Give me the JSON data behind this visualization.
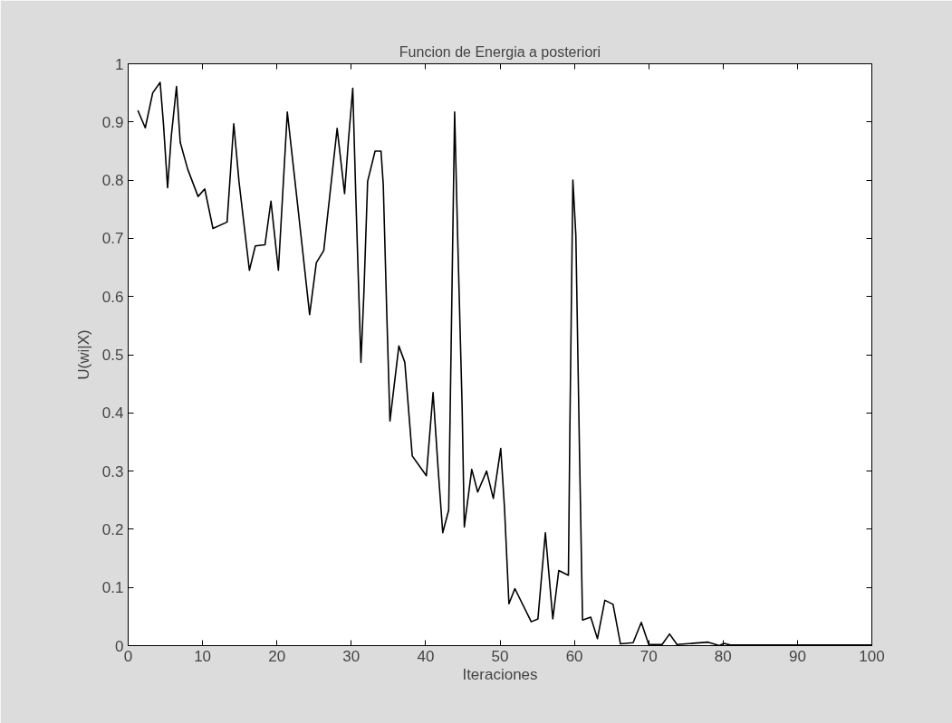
{
  "chart_data": {
    "type": "line",
    "title": "Funcion de Energia a posteriori",
    "xlabel": "Iteraciones",
    "ylabel": "U(wi|X)",
    "xlim": [
      0,
      100
    ],
    "ylim": [
      0,
      1
    ],
    "xticks": [
      0,
      10,
      20,
      30,
      40,
      50,
      60,
      70,
      80,
      90,
      100
    ],
    "yticks": [
      0,
      0.1,
      0.2,
      0.3,
      0.4,
      0.5,
      0.6,
      0.7,
      0.8,
      0.9,
      1
    ],
    "grid": false,
    "marker": "none",
    "line_style": "solid",
    "series": [
      {
        "color": "#000000",
        "x": [
          1.3,
          2.3,
          3.3,
          4.3,
          4.75,
          5.3,
          5.8,
          6.5,
          7,
          8,
          9.4,
          10.3,
          11.4,
          13.3,
          14.2,
          14.9,
          16.3,
          17.1,
          18.4,
          19.2,
          20.2,
          21.4,
          22.8,
          24.4,
          25.3,
          26.3,
          28.1,
          29.1,
          29.6,
          30.2,
          30.6,
          31.3,
          31.7,
          32.2,
          33.2,
          34,
          34.3,
          34.8,
          35.2,
          36.4,
          37.2,
          38.2,
          40.1,
          41,
          41.7,
          42.3,
          43.1,
          43.9,
          44.3,
          44.9,
          45.2,
          46.2,
          47,
          48.2,
          49.1,
          50.1,
          50.6,
          51.2,
          52,
          54.2,
          55.1,
          56.1,
          57.1,
          57.9,
          59.2,
          59.4,
          59.8,
          60.2,
          60.7,
          61.1,
          62.2,
          63.1,
          64.1,
          65.2,
          66.2,
          67.9,
          69,
          70,
          71.8,
          72.8,
          73.8,
          78,
          79.5,
          80.1,
          81,
          100
        ],
        "values": [
          0.92,
          0.89,
          0.95,
          0.968,
          0.896,
          0.787,
          0.876,
          0.961,
          0.865,
          0.819,
          0.772,
          0.785,
          0.717,
          0.728,
          0.897,
          0.798,
          0.645,
          0.687,
          0.689,
          0.764,
          0.645,
          0.917,
          0.756,
          0.569,
          0.658,
          0.679,
          0.889,
          0.777,
          0.865,
          0.958,
          0.777,
          0.487,
          0.607,
          0.798,
          0.85,
          0.85,
          0.793,
          0.56,
          0.386,
          0.515,
          0.487,
          0.326,
          0.292,
          0.435,
          0.3,
          0.194,
          0.233,
          0.917,
          0.705,
          0.414,
          0.204,
          0.303,
          0.264,
          0.3,
          0.253,
          0.339,
          0.238,
          0.072,
          0.098,
          0.041,
          0.046,
          0.194,
          0.046,
          0.129,
          0.121,
          0.378,
          0.8,
          0.705,
          0.326,
          0.044,
          0.049,
          0.012,
          0.078,
          0.071,
          0.003,
          0.005,
          0.04,
          0.002,
          0.002,
          0.02,
          0.002,
          0.006,
          0.0,
          0.004,
          0.001,
          0.001
        ]
      }
    ]
  }
}
